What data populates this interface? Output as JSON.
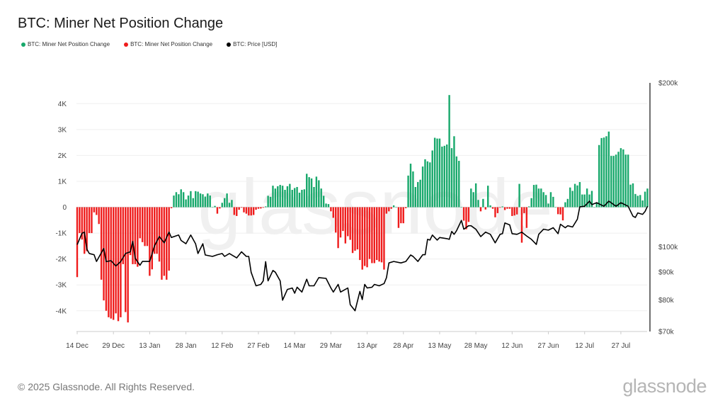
{
  "chart_data": {
    "type": "bar",
    "title": "BTC: Miner Net Position Change",
    "legend": {
      "placement": "top-left",
      "entries": [
        {
          "label": "BTC: Miner Net Position Change",
          "color": "#17a86b"
        },
        {
          "label": "BTC: Miner Net Position Change",
          "color": "#ef1c1c"
        },
        {
          "label": "BTC: Price [USD]",
          "color": "#000000"
        }
      ]
    },
    "xlim": [
      "2024-12-14",
      "2025-08-07"
    ],
    "x_ticks": [
      "14 Dec",
      "29 Dec",
      "13 Jan",
      "28 Jan",
      "12 Feb",
      "27 Feb",
      "14 Mar",
      "29 Mar",
      "13 Apr",
      "28 Apr",
      "13 May",
      "28 May",
      "12 Jun",
      "27 Jun",
      "12 Jul",
      "27 Jul"
    ],
    "x_tick_dates": [
      "2024-12-14",
      "2024-12-29",
      "2025-01-13",
      "2025-01-28",
      "2025-02-12",
      "2025-02-27",
      "2025-03-14",
      "2025-03-29",
      "2025-04-13",
      "2025-04-28",
      "2025-05-13",
      "2025-05-28",
      "2025-06-12",
      "2025-06-27",
      "2025-07-12",
      "2025-07-27"
    ],
    "y_left": {
      "ylim": [
        -4800,
        4800
      ],
      "ticks": [
        4000,
        3000,
        2000,
        1000,
        0,
        -1000,
        -2000,
        -3000,
        -4000
      ],
      "tick_labels": [
        "4K",
        "3K",
        "2K",
        "1K",
        "0",
        "-1K",
        "-2K",
        "-3K",
        "-4K"
      ],
      "grid": true
    },
    "y_right": {
      "scale": "log",
      "ylim": [
        70000,
        200000
      ],
      "ticks": [
        200000,
        100000,
        90000,
        80000,
        70000
      ],
      "tick_labels": [
        "$200k",
        "$100k",
        "$90k",
        "$80k",
        "$70k"
      ]
    },
    "net_position_daily": [
      -2700,
      -1000,
      -1250,
      -1800,
      -1700,
      -1000,
      -1000,
      -200,
      -300,
      -650,
      -2800,
      -3600,
      -4000,
      -4250,
      -4300,
      -4350,
      -4100,
      -4400,
      -4250,
      -2200,
      -4050,
      -4450,
      -1850,
      -2200,
      -2200,
      -2300,
      -1200,
      -1350,
      -1500,
      -1500,
      -2650,
      -2400,
      -1800,
      -1800,
      -2100,
      -2800,
      -2650,
      -2800,
      -2450,
      -40,
      450,
      580,
      500,
      690,
      580,
      300,
      450,
      620,
      350,
      620,
      600,
      530,
      500,
      410,
      530,
      450,
      0,
      50,
      -250,
      -50,
      170,
      350,
      530,
      170,
      280,
      -300,
      -340,
      -100,
      -20,
      -200,
      -250,
      -320,
      -320,
      -300,
      -100,
      -60,
      -50,
      -20,
      30,
      440,
      400,
      830,
      720,
      810,
      860,
      830,
      670,
      810,
      900,
      670,
      740,
      780,
      560,
      670,
      690,
      1290,
      1160,
      1110,
      780,
      1180,
      1040,
      720,
      440,
      140,
      120,
      -160,
      -410,
      -980,
      -1580,
      -1170,
      -920,
      -1400,
      -1120,
      -1260,
      -1770,
      -1680,
      -1630,
      -2040,
      -2410,
      -2270,
      -2320,
      -2000,
      -2160,
      -2160,
      -2040,
      -2100,
      -2130,
      -2410,
      -250,
      -160,
      -60,
      70,
      0,
      -800,
      -620,
      -620,
      -40,
      1220,
      1680,
      1380,
      780,
      970,
      1060,
      1570,
      1850,
      1770,
      1730,
      2190,
      2680,
      2650,
      2650,
      2340,
      2370,
      2420,
      4330,
      2280,
      2740,
      1960,
      1790,
      0,
      -520,
      -850,
      -570,
      720,
      580,
      920,
      280,
      -160,
      320,
      -90,
      830,
      70,
      -60,
      -390,
      -230,
      -20,
      30,
      -110,
      -60,
      -60,
      -340,
      -320,
      -280,
      900,
      -1370,
      -230,
      -800,
      30,
      350,
      860,
      870,
      720,
      720,
      580,
      470,
      140,
      580,
      400,
      0,
      -270,
      -280,
      -510,
      190,
      320,
      760,
      630,
      900,
      840,
      970,
      490,
      490,
      720,
      490,
      630,
      0,
      170,
      2400,
      2670,
      2690,
      2740,
      2920,
      1980,
      1980,
      2030,
      2140,
      2280,
      2230,
      2030,
      2030,
      870,
      920,
      510,
      440,
      470,
      260,
      600,
      720
    ],
    "price": [
      [
        "2024-12-14",
        101000
      ],
      [
        "2024-12-16",
        106000
      ],
      [
        "2024-12-17",
        106500
      ],
      [
        "2024-12-18",
        99100
      ],
      [
        "2024-12-19",
        97300
      ],
      [
        "2024-12-21",
        96800
      ],
      [
        "2024-12-22",
        94100
      ],
      [
        "2024-12-25",
        99400
      ],
      [
        "2024-12-26",
        94000
      ],
      [
        "2024-12-28",
        94400
      ],
      [
        "2024-12-30",
        92300
      ],
      [
        "2025-01-01",
        94000
      ],
      [
        "2025-01-03",
        97300
      ],
      [
        "2025-01-05",
        98000
      ],
      [
        "2025-01-06",
        102400
      ],
      [
        "2025-01-07",
        95400
      ],
      [
        "2025-01-09",
        92600
      ],
      [
        "2025-01-10",
        94100
      ],
      [
        "2025-01-13",
        94100
      ],
      [
        "2025-01-15",
        100500
      ],
      [
        "2025-01-17",
        104500
      ],
      [
        "2025-01-19",
        101800
      ],
      [
        "2025-01-21",
        106500
      ],
      [
        "2025-01-22",
        104100
      ],
      [
        "2025-01-25",
        105200
      ],
      [
        "2025-01-26",
        102800
      ],
      [
        "2025-01-28",
        101400
      ],
      [
        "2025-01-30",
        105200
      ],
      [
        "2025-02-01",
        101400
      ],
      [
        "2025-02-02",
        97300
      ],
      [
        "2025-02-04",
        101400
      ],
      [
        "2025-02-05",
        96700
      ],
      [
        "2025-02-08",
        96100
      ],
      [
        "2025-02-10",
        96800
      ],
      [
        "2025-02-12",
        97300
      ],
      [
        "2025-02-13",
        96100
      ],
      [
        "2025-02-15",
        97300
      ],
      [
        "2025-02-18",
        95500
      ],
      [
        "2025-02-20",
        98000
      ],
      [
        "2025-02-22",
        96100
      ],
      [
        "2025-02-23",
        96100
      ],
      [
        "2025-02-24",
        89900
      ],
      [
        "2025-02-26",
        84900
      ],
      [
        "2025-02-28",
        85400
      ],
      [
        "2025-03-01",
        86700
      ],
      [
        "2025-03-02",
        94000
      ],
      [
        "2025-03-03",
        86700
      ],
      [
        "2025-03-05",
        90600
      ],
      [
        "2025-03-06",
        89900
      ],
      [
        "2025-03-08",
        86700
      ],
      [
        "2025-03-09",
        79900
      ],
      [
        "2025-03-11",
        83600
      ],
      [
        "2025-03-13",
        84100
      ],
      [
        "2025-03-14",
        82300
      ],
      [
        "2025-03-15",
        84400
      ],
      [
        "2025-03-17",
        82700
      ],
      [
        "2025-03-19",
        87300
      ],
      [
        "2025-03-20",
        84900
      ],
      [
        "2025-03-22",
        84900
      ],
      [
        "2025-03-24",
        87900
      ],
      [
        "2025-03-27",
        87600
      ],
      [
        "2025-03-29",
        84100
      ],
      [
        "2025-03-30",
        82700
      ],
      [
        "2025-04-01",
        85400
      ],
      [
        "2025-04-02",
        82700
      ],
      [
        "2025-04-05",
        84100
      ],
      [
        "2025-04-06",
        78400
      ],
      [
        "2025-04-08",
        76400
      ],
      [
        "2025-04-10",
        82900
      ],
      [
        "2025-04-11",
        80100
      ],
      [
        "2025-04-12",
        85400
      ],
      [
        "2025-04-13",
        84100
      ],
      [
        "2025-04-15",
        84400
      ],
      [
        "2025-04-16",
        85400
      ],
      [
        "2025-04-18",
        84900
      ],
      [
        "2025-04-20",
        85700
      ],
      [
        "2025-04-21",
        87900
      ],
      [
        "2025-04-22",
        93500
      ],
      [
        "2025-04-24",
        94100
      ],
      [
        "2025-04-27",
        93500
      ],
      [
        "2025-04-29",
        94100
      ],
      [
        "2025-05-01",
        96700
      ],
      [
        "2025-05-02",
        96100
      ],
      [
        "2025-05-04",
        94100
      ],
      [
        "2025-05-06",
        96800
      ],
      [
        "2025-05-07",
        96800
      ],
      [
        "2025-05-08",
        103300
      ],
      [
        "2025-05-09",
        103000
      ],
      [
        "2025-05-10",
        105200
      ],
      [
        "2025-05-12",
        103000
      ],
      [
        "2025-05-13",
        104100
      ],
      [
        "2025-05-16",
        103600
      ],
      [
        "2025-05-17",
        103300
      ],
      [
        "2025-05-18",
        106800
      ],
      [
        "2025-05-19",
        105500
      ],
      [
        "2025-05-20",
        107100
      ],
      [
        "2025-05-22",
        111900
      ],
      [
        "2025-05-23",
        107800
      ],
      [
        "2025-05-25",
        109400
      ],
      [
        "2025-05-26",
        109400
      ],
      [
        "2025-05-28",
        107800
      ],
      [
        "2025-05-30",
        104500
      ],
      [
        "2025-06-01",
        106500
      ],
      [
        "2025-06-03",
        105500
      ],
      [
        "2025-06-05",
        101800
      ],
      [
        "2025-06-07",
        105500
      ],
      [
        "2025-06-08",
        105800
      ],
      [
        "2025-06-09",
        110700
      ],
      [
        "2025-06-11",
        109800
      ],
      [
        "2025-06-12",
        105800
      ],
      [
        "2025-06-14",
        105500
      ],
      [
        "2025-06-16",
        106500
      ],
      [
        "2025-06-18",
        104800
      ],
      [
        "2025-06-20",
        103300
      ],
      [
        "2025-06-22",
        101100
      ],
      [
        "2025-06-23",
        105500
      ],
      [
        "2025-06-25",
        107800
      ],
      [
        "2025-06-27",
        107400
      ],
      [
        "2025-06-29",
        108500
      ],
      [
        "2025-07-01",
        105800
      ],
      [
        "2025-07-02",
        110100
      ],
      [
        "2025-07-04",
        108500
      ],
      [
        "2025-07-05",
        109400
      ],
      [
        "2025-07-07",
        108800
      ],
      [
        "2025-07-09",
        112500
      ],
      [
        "2025-07-10",
        118500
      ],
      [
        "2025-07-12",
        118800
      ],
      [
        "2025-07-14",
        121400
      ],
      [
        "2025-07-15",
        119600
      ],
      [
        "2025-07-17",
        120600
      ],
      [
        "2025-07-20",
        118800
      ],
      [
        "2025-07-22",
        121400
      ],
      [
        "2025-07-25",
        118800
      ],
      [
        "2025-07-27",
        120600
      ],
      [
        "2025-07-30",
        118800
      ],
      [
        "2025-08-01",
        113900
      ],
      [
        "2025-08-02",
        113300
      ],
      [
        "2025-08-03",
        115500
      ],
      [
        "2025-08-05",
        114800
      ],
      [
        "2025-08-06",
        116200
      ],
      [
        "2025-08-07",
        118800
      ]
    ]
  },
  "watermark": "glassnode",
  "footer": {
    "copyright": "© 2025 Glassnode. All Rights Reserved.",
    "logo": "glassnode"
  }
}
